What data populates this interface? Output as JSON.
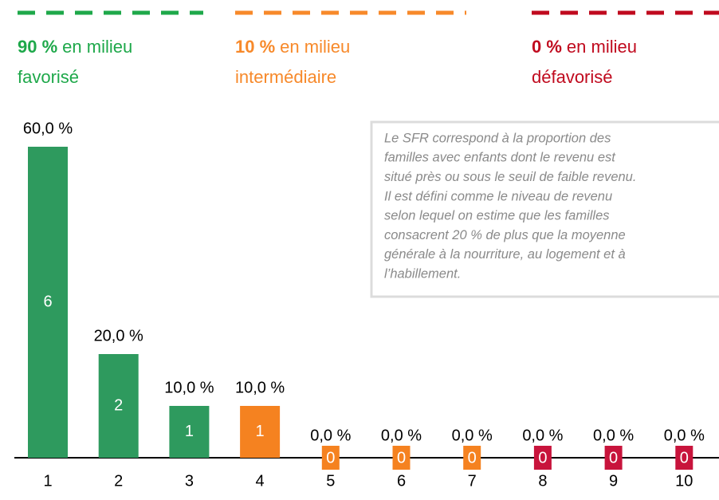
{
  "chart_data": {
    "type": "bar",
    "legend": [
      {
        "label": "90 %",
        "text": [
          "en milieu",
          "favorisé"
        ],
        "color": "#1ea84a"
      },
      {
        "label": "10 %",
        "text": [
          "en milieu",
          "intermédiaire"
        ],
        "color": "#f7892a"
      },
      {
        "label": "0 %",
        "text": [
          "en milieu",
          "défavorisé"
        ],
        "color": "#c00a1e"
      }
    ],
    "note": [
      "Le SFR correspond à la proportion des",
      "familles avec enfants dont le revenu est",
      "situé près ou sous le seuil de faible revenu.",
      "Il est défini comme le niveau de revenu",
      "selon lequel on estime que les familles",
      "consacrent 20 % de plus que la moyenne",
      "générale à la nourriture, au logement et à",
      "l’habillement."
    ],
    "categories": [
      "1",
      "2",
      "3",
      "4",
      "5",
      "6",
      "7",
      "8",
      "9",
      "10"
    ],
    "values": [
      60,
      20,
      10,
      10,
      0,
      0,
      0,
      0,
      0,
      0
    ],
    "value_labels": [
      "60,0 %",
      "20,0 %",
      "10,0 %",
      "10,0 %",
      "0,0 %",
      "0,0 %",
      "0,0 %",
      "0,0 %",
      "0,0 %",
      "0,0 %"
    ],
    "counts": [
      6,
      2,
      1,
      1,
      0,
      0,
      0,
      0,
      0,
      0
    ],
    "colors": [
      "#2e9a5e",
      "#2e9a5e",
      "#2e9a5e",
      "#f58220",
      "#f58220",
      "#f58220",
      "#f58220",
      "#c8143c",
      "#c8143c",
      "#c8143c"
    ],
    "ylim": [
      0,
      60
    ]
  }
}
